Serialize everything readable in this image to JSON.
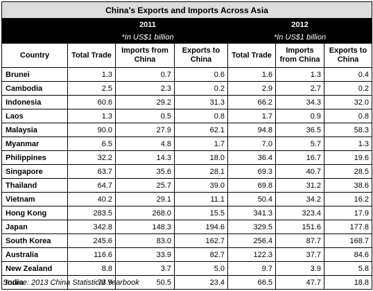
{
  "title": "China’s Exports and Imports Across Asia",
  "years": [
    "2011",
    "2012"
  ],
  "unit_note": "*In US$1 billion",
  "columns": {
    "country": "Country",
    "total_trade": "Total Trade",
    "imports_from_china": "Imports from China",
    "exports_to_china": "Exports to China"
  },
  "rows": [
    {
      "country": "Brunei",
      "v": [
        "1.3",
        "0.7",
        "0.6",
        "1.6",
        "1.3",
        "0.4"
      ]
    },
    {
      "country": "Cambodia",
      "v": [
        "2.5",
        "2.3",
        "0.2",
        "2.9",
        "2.7",
        "0.2"
      ]
    },
    {
      "country": "Indonesia",
      "v": [
        "60.6",
        "29.2",
        "31.3",
        "66.2",
        "34.3",
        "32.0"
      ]
    },
    {
      "country": "Laos",
      "v": [
        "1.3",
        "0.5",
        "0.8",
        "1.7",
        "0.9",
        "0.8"
      ]
    },
    {
      "country": "Malaysia",
      "v": [
        "90.0",
        "27.9",
        "62.1",
        "94.8",
        "36.5",
        "58.3"
      ]
    },
    {
      "country": "Myanmar",
      "v": [
        "6.5",
        "4.8",
        "1.7",
        "7.0",
        "5.7",
        "1.3"
      ]
    },
    {
      "country": "Philippines",
      "v": [
        "32.2",
        "14.3",
        "18.0",
        "36.4",
        "16.7",
        "19.6"
      ]
    },
    {
      "country": "Singapore",
      "v": [
        "63.7",
        "35.6",
        "28.1",
        "69.3",
        "40.7",
        "28.5"
      ]
    },
    {
      "country": "Thailand",
      "v": [
        "64.7",
        "25.7",
        "39.0",
        "69.8",
        "31.2",
        "38.6"
      ]
    },
    {
      "country": "Vietnam",
      "v": [
        "40.2",
        "29.1",
        "11.1",
        "50.4",
        "34.2",
        "16.2"
      ]
    },
    {
      "country": "Hong Kong",
      "v": [
        "283.5",
        "268.0",
        "15.5",
        "341.3",
        "323.4",
        "17.9"
      ]
    },
    {
      "country": "Japan",
      "v": [
        "342.8",
        "148.3",
        "194.6",
        "329.5",
        "151.6",
        "177.8"
      ]
    },
    {
      "country": "South Korea",
      "v": [
        "245.6",
        "83.0",
        "162.7",
        "256.4",
        "87.7",
        "168.7"
      ]
    },
    {
      "country": "Australia",
      "v": [
        "116.6",
        "33.9",
        "82.7",
        "122.3",
        "37.7",
        "84.6"
      ]
    },
    {
      "country": "New Zealand",
      "v": [
        "8.8",
        "3.7",
        "5.0",
        "9.7",
        "3.9",
        "5.8"
      ]
    },
    {
      "country": "India",
      "v": [
        "73.9",
        "50.5",
        "23.4",
        "66.5",
        "47.7",
        "18.8"
      ]
    }
  ],
  "source": "Source: 2013 China Statistical Yearbook"
}
